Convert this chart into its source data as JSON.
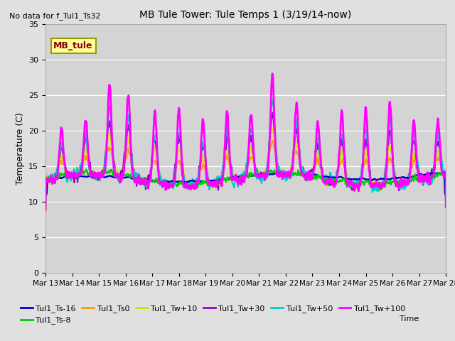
{
  "title": "MB Tule Tower: Tule Temps 1 (3/19/14-now)",
  "no_data_text": "No data for f_Tul1_Ts32",
  "ylabel": "Temperature (C)",
  "ylim": [
    0,
    35
  ],
  "yticks": [
    0,
    5,
    10,
    15,
    20,
    25,
    30,
    35
  ],
  "fig_bg_color": "#e0e0e0",
  "plot_bg_color": "#d4d4d4",
  "legend_box_fill": "#ffff99",
  "legend_box_edge": "#999900",
  "legend_box_text": "MB_tule",
  "series": [
    {
      "label": "Tul1_Ts-16",
      "color": "#0000cc",
      "lw": 1.5,
      "zorder": 4
    },
    {
      "label": "Tul1_Ts-8",
      "color": "#00cc00",
      "lw": 1.5,
      "zorder": 4
    },
    {
      "label": "Tul1_Ts0",
      "color": "#ff9900",
      "lw": 1.5,
      "zorder": 3
    },
    {
      "label": "Tul1_Tw+10",
      "color": "#dddd00",
      "lw": 1.5,
      "zorder": 3
    },
    {
      "label": "Tul1_Tw+30",
      "color": "#9900cc",
      "lw": 1.5,
      "zorder": 3
    },
    {
      "label": "Tul1_Tw+50",
      "color": "#00cccc",
      "lw": 1.5,
      "zorder": 3
    },
    {
      "label": "Tul1_Tw+100",
      "color": "#ff00ff",
      "lw": 2.0,
      "zorder": 5
    }
  ],
  "xtick_labels": [
    "Mar 13",
    "Mar 14",
    "Mar 15",
    "Mar 16",
    "Mar 17",
    "Mar 18",
    "Mar 19",
    "Mar 20",
    "Mar 21",
    "Mar 22",
    "Mar 23",
    "Mar 24",
    "Mar 25",
    "Mar 26",
    "Mar 27",
    "Mar 28"
  ],
  "n_points": 1500
}
